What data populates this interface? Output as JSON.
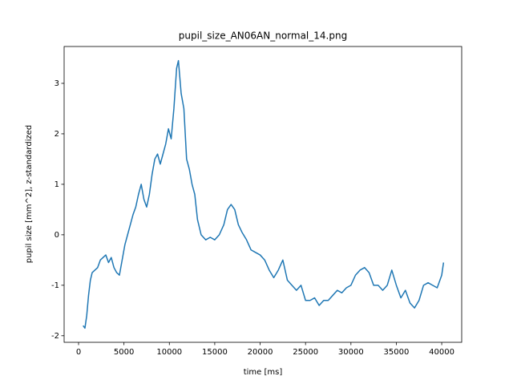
{
  "chart_data": {
    "type": "line",
    "title": "pupil_size_AN06AN_normal_14.png",
    "x_label": "time [ms]",
    "y_label": "pupil size [mm^2], z-standardized",
    "x": [
      500,
      700,
      900,
      1100,
      1300,
      1500,
      1800,
      2100,
      2400,
      2700,
      3000,
      3300,
      3600,
      3900,
      4200,
      4500,
      4800,
      5100,
      5400,
      5700,
      6000,
      6300,
      6600,
      6900,
      7200,
      7500,
      7800,
      8100,
      8400,
      8700,
      9000,
      9300,
      9600,
      9900,
      10200,
      10500,
      10800,
      11000,
      11300,
      11600,
      11900,
      12200,
      12500,
      12800,
      13100,
      13500,
      14000,
      14500,
      15000,
      15500,
      16000,
      16400,
      16800,
      17200,
      17600,
      18000,
      18500,
      19000,
      19500,
      20000,
      20500,
      21000,
      21500,
      22000,
      22500,
      23000,
      23500,
      24000,
      24500,
      25000,
      25500,
      26000,
      26500,
      27000,
      27500,
      28000,
      28500,
      29000,
      29500,
      30000,
      30500,
      31000,
      31500,
      32000,
      32500,
      33000,
      33500,
      34000,
      34500,
      35000,
      35500,
      36000,
      36500,
      37000,
      37500,
      38000,
      38500,
      39000,
      39500,
      40000,
      40200
    ],
    "series": [
      {
        "name": "pupil size",
        "color": "#1f77b4",
        "values": [
          -1.8,
          -1.85,
          -1.6,
          -1.2,
          -0.9,
          -0.75,
          -0.7,
          -0.65,
          -0.5,
          -0.45,
          -0.4,
          -0.55,
          -0.45,
          -0.65,
          -0.75,
          -0.8,
          -0.5,
          -0.2,
          0,
          0.2,
          0.4,
          0.55,
          0.8,
          1.0,
          0.7,
          0.55,
          0.8,
          1.2,
          1.5,
          1.6,
          1.4,
          1.6,
          1.8,
          2.1,
          1.9,
          2.5,
          3.3,
          3.45,
          2.8,
          2.5,
          1.5,
          1.3,
          1.0,
          0.8,
          0.3,
          0,
          -0.1,
          -0.05,
          -0.1,
          0.0,
          0.2,
          0.5,
          0.6,
          0.5,
          0.2,
          0.05,
          -0.1,
          -0.3,
          -0.35,
          -0.4,
          -0.5,
          -0.7,
          -0.85,
          -0.7,
          -0.5,
          -0.9,
          -1.0,
          -1.1,
          -1.0,
          -1.3,
          -1.3,
          -1.25,
          -1.4,
          -1.3,
          -1.3,
          -1.2,
          -1.1,
          -1.15,
          -1.05,
          -1.0,
          -0.8,
          -0.7,
          -0.65,
          -0.75,
          -1.0,
          -1.0,
          -1.1,
          -1.0,
          -0.7,
          -1.0,
          -1.25,
          -1.1,
          -1.35,
          -1.45,
          -1.3,
          -1.0,
          -0.95,
          -1.0,
          -1.05,
          -0.8,
          -0.55
        ]
      }
    ],
    "xlim": [
      -1590,
      42200
    ],
    "ylim": [
      -2.13,
      3.73
    ],
    "xticks": [
      0,
      5000,
      10000,
      15000,
      20000,
      25000,
      30000,
      35000,
      40000
    ],
    "yticks": [
      -2,
      -1,
      0,
      1,
      2,
      3
    ],
    "grid": false
  }
}
